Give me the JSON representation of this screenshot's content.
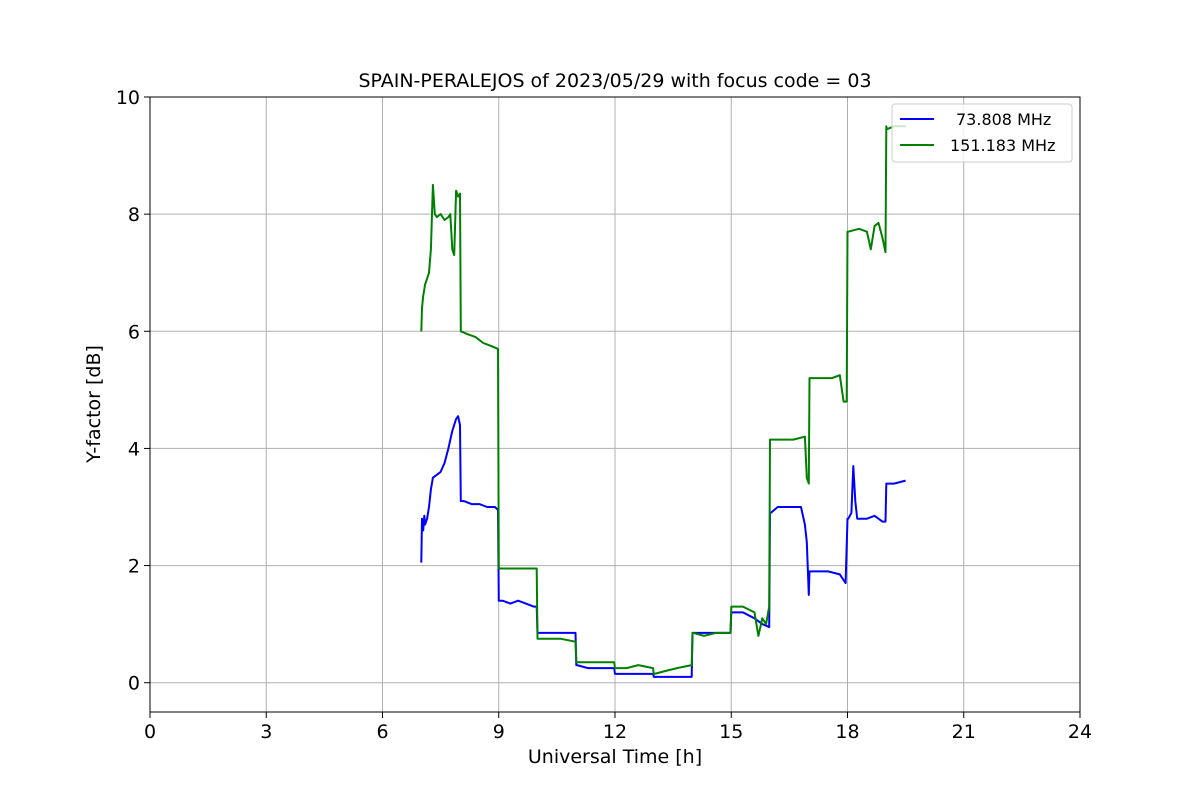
{
  "colors": {
    "series1": "#0000ff",
    "series2": "#008000",
    "grid": "#b0b0b0",
    "background": "#ffffff"
  },
  "chart_data": {
    "type": "line",
    "title": "SPAIN-PERALEJOS of 2023/05/29 with focus code = 03",
    "xlabel": "Universal Time [h]",
    "ylabel": "Y-factor [dB]",
    "xlim": [
      0,
      24
    ],
    "ylim": [
      -0.5,
      10
    ],
    "xticks": [
      0,
      3,
      6,
      9,
      12,
      15,
      18,
      21,
      24
    ],
    "yticks": [
      0,
      2,
      4,
      6,
      8,
      10
    ],
    "grid": true,
    "legend_position": "top-right",
    "series": [
      {
        "name": "73.808 MHz",
        "color": "#0000ff",
        "x": [
          7.0,
          7.02,
          7.05,
          7.08,
          7.1,
          7.15,
          7.2,
          7.25,
          7.3,
          7.4,
          7.5,
          7.6,
          7.7,
          7.8,
          7.85,
          7.9,
          7.95,
          8.0,
          8.02,
          8.1,
          8.3,
          8.5,
          8.7,
          8.9,
          8.98,
          9.0,
          9.02,
          9.1,
          9.3,
          9.5,
          9.7,
          9.9,
          9.98,
          10.0,
          10.02,
          10.2,
          10.5,
          10.8,
          10.98,
          11.0,
          11.02,
          11.3,
          11.6,
          11.98,
          12.0,
          12.02,
          12.3,
          12.6,
          12.98,
          13.0,
          13.02,
          13.3,
          13.6,
          13.98,
          14.0,
          14.02,
          14.3,
          14.6,
          14.98,
          15.0,
          15.02,
          15.3,
          15.6,
          15.8,
          15.98,
          16.0,
          16.02,
          16.2,
          16.5,
          16.8,
          16.9,
          16.95,
          17.0,
          17.02,
          17.2,
          17.5,
          17.8,
          17.95,
          18.0,
          18.02,
          18.1,
          18.15,
          18.2,
          18.25,
          18.3,
          18.5,
          18.7,
          18.9,
          18.98,
          19.0,
          19.02,
          19.2,
          19.5
        ],
        "y": [
          2.05,
          2.8,
          2.6,
          2.85,
          2.7,
          2.8,
          3.0,
          3.3,
          3.5,
          3.55,
          3.6,
          3.75,
          4.0,
          4.3,
          4.4,
          4.5,
          4.55,
          4.4,
          3.1,
          3.1,
          3.05,
          3.05,
          3.0,
          3.0,
          2.95,
          1.4,
          1.4,
          1.4,
          1.35,
          1.4,
          1.35,
          1.3,
          1.3,
          0.85,
          0.85,
          0.85,
          0.85,
          0.85,
          0.85,
          0.3,
          0.3,
          0.25,
          0.25,
          0.25,
          0.15,
          0.15,
          0.15,
          0.15,
          0.15,
          0.1,
          0.1,
          0.1,
          0.1,
          0.1,
          0.85,
          0.85,
          0.85,
          0.85,
          0.85,
          1.2,
          1.2,
          1.2,
          1.1,
          1.0,
          0.95,
          2.9,
          2.9,
          3.0,
          3.0,
          3.0,
          2.7,
          2.4,
          1.5,
          1.9,
          1.9,
          1.9,
          1.85,
          1.7,
          2.8,
          2.8,
          2.9,
          3.7,
          3.1,
          2.8,
          2.8,
          2.8,
          2.85,
          2.75,
          2.75,
          3.4,
          3.4,
          3.4,
          3.45
        ]
      },
      {
        "name": "151.183 MHz",
        "color": "#008000",
        "x": [
          7.0,
          7.02,
          7.05,
          7.1,
          7.15,
          7.2,
          7.25,
          7.3,
          7.35,
          7.4,
          7.5,
          7.6,
          7.7,
          7.75,
          7.8,
          7.85,
          7.9,
          7.95,
          8.0,
          8.02,
          8.2,
          8.4,
          8.6,
          8.8,
          8.98,
          9.0,
          9.02,
          9.3,
          9.6,
          9.98,
          10.0,
          10.02,
          10.3,
          10.6,
          10.98,
          11.0,
          11.02,
          11.3,
          11.6,
          11.98,
          12.0,
          12.02,
          12.3,
          12.6,
          12.98,
          13.0,
          13.02,
          13.3,
          13.6,
          13.98,
          14.0,
          14.02,
          14.3,
          14.6,
          14.98,
          15.0,
          15.02,
          15.3,
          15.6,
          15.7,
          15.8,
          15.9,
          15.98,
          16.0,
          16.02,
          16.3,
          16.6,
          16.9,
          16.95,
          17.0,
          17.02,
          17.3,
          17.6,
          17.8,
          17.9,
          17.98,
          18.0,
          18.02,
          18.3,
          18.5,
          18.6,
          18.7,
          18.8,
          18.9,
          18.98,
          19.0,
          19.02,
          19.2,
          19.5
        ],
        "y": [
          6.0,
          6.4,
          6.6,
          6.8,
          6.9,
          7.0,
          7.4,
          8.5,
          8.0,
          7.95,
          8.0,
          7.9,
          7.95,
          8.0,
          7.4,
          7.3,
          8.4,
          8.3,
          8.35,
          6.0,
          5.95,
          5.9,
          5.8,
          5.75,
          5.7,
          1.95,
          1.95,
          1.95,
          1.95,
          1.95,
          0.75,
          0.75,
          0.75,
          0.75,
          0.7,
          0.35,
          0.35,
          0.35,
          0.35,
          0.35,
          0.25,
          0.25,
          0.25,
          0.3,
          0.25,
          0.15,
          0.15,
          0.2,
          0.25,
          0.3,
          0.85,
          0.85,
          0.8,
          0.85,
          0.85,
          1.3,
          1.3,
          1.3,
          1.2,
          0.8,
          1.1,
          1.0,
          1.3,
          4.15,
          4.15,
          4.15,
          4.15,
          4.2,
          3.5,
          3.4,
          5.2,
          5.2,
          5.2,
          5.25,
          4.8,
          4.8,
          7.7,
          7.7,
          7.75,
          7.7,
          7.4,
          7.8,
          7.85,
          7.6,
          7.35,
          9.5,
          9.45,
          9.5,
          9.5
        ]
      }
    ]
  }
}
